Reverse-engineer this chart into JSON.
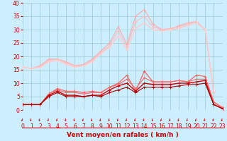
{
  "x": [
    0,
    1,
    2,
    3,
    4,
    5,
    6,
    7,
    8,
    9,
    10,
    11,
    12,
    13,
    14,
    15,
    16,
    17,
    18,
    19,
    20,
    21,
    22,
    23
  ],
  "series": [
    {
      "name": "gust_line1",
      "color": "#ffaaaa",
      "lw": 0.8,
      "values": [
        16.0,
        15.5,
        16.5,
        19.0,
        19.0,
        18.0,
        16.5,
        17.0,
        19.0,
        22.0,
        25.0,
        31.0,
        24.5,
        35.0,
        37.5,
        32.0,
        30.0,
        30.0,
        31.5,
        32.5,
        33.0,
        30.0,
        6.5,
        null
      ]
    },
    {
      "name": "gust_line2",
      "color": "#ffbbbb",
      "lw": 0.8,
      "values": [
        16.0,
        15.5,
        16.0,
        18.5,
        19.0,
        17.5,
        16.5,
        16.5,
        18.5,
        21.5,
        24.0,
        29.5,
        23.5,
        33.0,
        35.0,
        31.0,
        30.0,
        30.5,
        31.0,
        32.0,
        33.0,
        30.0,
        6.5,
        null
      ]
    },
    {
      "name": "gust_smooth",
      "color": "#ffcccc",
      "lw": 1.0,
      "values": [
        16.0,
        15.5,
        16.0,
        18.0,
        18.5,
        17.0,
        16.0,
        16.5,
        18.0,
        21.0,
        23.5,
        27.5,
        22.5,
        30.5,
        32.5,
        30.0,
        29.5,
        30.0,
        30.5,
        31.5,
        32.5,
        30.0,
        7.0,
        null
      ]
    },
    {
      "name": "wind_line1",
      "color": "#ff5555",
      "lw": 0.8,
      "values": [
        2.0,
        2.0,
        2.0,
        6.0,
        8.0,
        7.0,
        7.0,
        6.5,
        7.0,
        6.5,
        8.5,
        10.0,
        13.0,
        7.0,
        14.5,
        10.5,
        10.5,
        10.5,
        11.0,
        10.5,
        13.0,
        12.5,
        3.0,
        0.5
      ]
    },
    {
      "name": "wind_line2",
      "color": "#ff6666",
      "lw": 0.8,
      "values": [
        2.0,
        2.0,
        2.0,
        6.0,
        7.5,
        6.5,
        6.5,
        6.0,
        6.5,
        6.5,
        8.5,
        9.5,
        11.5,
        8.0,
        12.0,
        10.5,
        10.5,
        10.5,
        11.0,
        10.5,
        11.5,
        11.5,
        3.0,
        1.0
      ]
    },
    {
      "name": "wind_smooth",
      "color": "#cc0000",
      "lw": 1.0,
      "values": [
        2.0,
        2.0,
        2.0,
        5.5,
        7.0,
        5.5,
        5.5,
        5.0,
        5.5,
        5.5,
        7.5,
        9.0,
        10.0,
        7.0,
        10.0,
        9.5,
        9.5,
        9.5,
        10.0,
        10.0,
        10.5,
        11.0,
        2.0,
        0.5
      ]
    },
    {
      "name": "wind_lower",
      "color": "#aa0000",
      "lw": 0.8,
      "values": [
        2.0,
        2.0,
        2.0,
        5.0,
        6.5,
        5.0,
        5.0,
        5.0,
        5.5,
        5.0,
        6.5,
        7.5,
        8.5,
        6.5,
        8.5,
        8.5,
        8.5,
        8.5,
        9.0,
        9.5,
        9.5,
        10.0,
        2.0,
        0.5
      ]
    }
  ],
  "xlabel": "Vent moyen/en rafales ( km/h )",
  "xlim": [
    0,
    23
  ],
  "ylim": [
    0,
    40
  ],
  "yticks": [
    0,
    5,
    10,
    15,
    20,
    25,
    30,
    35,
    40
  ],
  "xticks": [
    0,
    1,
    2,
    3,
    4,
    5,
    6,
    7,
    8,
    9,
    10,
    11,
    12,
    13,
    14,
    15,
    16,
    17,
    18,
    19,
    20,
    21,
    22,
    23
  ],
  "bg_color": "#cceeff",
  "grid_color": "#99cccc",
  "tick_color": "#cc0000",
  "arrow_color": "#cc0000",
  "xlabel_color": "#cc0000",
  "xlabel_fontsize": 6.5,
  "tick_fontsize": 5.5
}
